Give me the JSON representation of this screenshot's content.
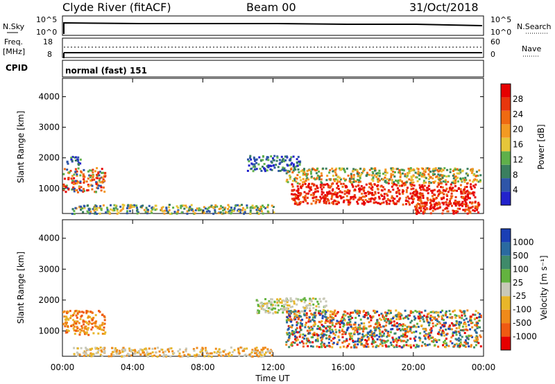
{
  "header": {
    "station": "Clyde River (fitACF)",
    "beam": "Beam 00",
    "date": "31/Oct/2018"
  },
  "top_panels": {
    "nsky_label": "N.Sky",
    "nsearch_label": "N.Search",
    "nsky_ticks": [
      "10^5",
      "10^0"
    ],
    "nsky_right_ticks": [
      "10^5",
      "10^0"
    ],
    "freq_label": "Freq.",
    "freq_unit": "[MHz]",
    "freq_ticks": [
      "18",
      "8"
    ],
    "nave_label": "Nave",
    "nave_ticks": [
      "60",
      "0"
    ],
    "cpid_label": "CPID",
    "cpid_value": "normal (fast) 151"
  },
  "colors": {
    "power": [
      "#2222cc",
      "#2e55a8",
      "#3a7f5f",
      "#5fb04a",
      "#e6c63a",
      "#f39a22",
      "#ef6a12",
      "#e8360d",
      "#e60000"
    ],
    "velocity": [
      "#1a3fb5",
      "#2a6aa0",
      "#3f8a6a",
      "#63b33f",
      "#c9c9b8",
      "#e8b62a",
      "#ef8a1a",
      "#ef5a12",
      "#e60000"
    ]
  },
  "chart_data": [
    {
      "type": "heatmap",
      "title": "",
      "xlabel": "Time UT",
      "ylabel": "Slant Range [km]",
      "x_ticks": [
        "00:00",
        "04:00",
        "08:00",
        "12:00",
        "16:00",
        "20:00",
        "00:00"
      ],
      "y_ticks": [
        1000,
        2000,
        3000,
        4000
      ],
      "xlim": [
        0,
        24
      ],
      "ylim": [
        180,
        4600
      ],
      "colorbar": {
        "label": "Power [dB]",
        "ticks": [
          4,
          8,
          12,
          16,
          20,
          24,
          28
        ],
        "range": [
          0,
          32
        ]
      },
      "scatter_regions": [
        {
          "t_start": 0.0,
          "t_end": 2.4,
          "r_min": 900,
          "r_max": 1700,
          "level": "mixed-high"
        },
        {
          "t_start": 0.2,
          "t_end": 1.0,
          "r_min": 1800,
          "r_max": 2100,
          "level": "low"
        },
        {
          "t_start": 0.5,
          "t_end": 12.0,
          "r_min": 200,
          "r_max": 500,
          "level": "low-mid"
        },
        {
          "t_start": 10.5,
          "t_end": 13.5,
          "r_min": 1600,
          "r_max": 2100,
          "level": "low"
        },
        {
          "t_start": 12.7,
          "t_end": 23.8,
          "r_min": 1200,
          "r_max": 1700,
          "level": "mid"
        },
        {
          "t_start": 13.0,
          "t_end": 23.5,
          "r_min": 500,
          "r_max": 1200,
          "level": "high"
        },
        {
          "t_start": 20.0,
          "t_end": 23.7,
          "r_min": 200,
          "r_max": 600,
          "level": "high"
        }
      ]
    },
    {
      "type": "heatmap",
      "title": "",
      "xlabel": "Time UT",
      "ylabel": "Slant Range [km]",
      "x_ticks": [
        "00:00",
        "04:00",
        "08:00",
        "12:00",
        "16:00",
        "20:00",
        "00:00"
      ],
      "y_ticks": [
        1000,
        2000,
        3000,
        4000
      ],
      "xlim": [
        0,
        24
      ],
      "ylim": [
        180,
        4600
      ],
      "colorbar": {
        "label": "Velocity [m s⁻¹]",
        "ticks": [
          1000,
          500,
          100,
          25,
          -25,
          -100,
          -500,
          -1000
        ]
      },
      "scatter_regions": [
        {
          "t_start": 0.0,
          "t_end": 2.4,
          "r_min": 900,
          "r_max": 1700,
          "level": "negative"
        },
        {
          "t_start": 0.5,
          "t_end": 12.0,
          "r_min": 200,
          "r_max": 500,
          "level": "negative-small"
        },
        {
          "t_start": 11.0,
          "t_end": 15.0,
          "r_min": 1600,
          "r_max": 2100,
          "level": "near-zero"
        },
        {
          "t_start": 12.7,
          "t_end": 23.8,
          "r_min": 500,
          "r_max": 1700,
          "level": "mixed"
        }
      ]
    }
  ]
}
